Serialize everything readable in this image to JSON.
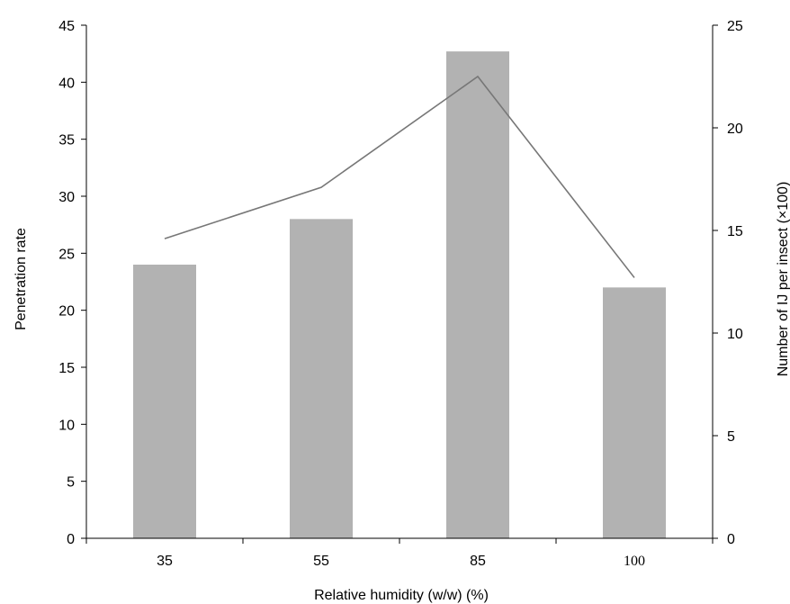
{
  "chart_data": {
    "type": "bar",
    "categories": [
      "35",
      "55",
      "85",
      "100"
    ],
    "series": [
      {
        "type": "bar",
        "axis": "left",
        "values": [
          24,
          28,
          42.7,
          22
        ],
        "color": "#b2b2b2"
      },
      {
        "type": "line",
        "axis": "right",
        "values": [
          14.6,
          17.1,
          22.5,
          12.7
        ],
        "color": "#777777"
      }
    ],
    "xlabel": "Relative humidity (w/w) (%)",
    "ylabel": "Penetration rate",
    "y2label": "Number of IJ per insect (×100)",
    "ylim": [
      0,
      45
    ],
    "y2lim": [
      0,
      25
    ],
    "yticks": [
      0,
      5,
      10,
      15,
      20,
      25,
      30,
      35,
      40,
      45
    ],
    "y2ticks": [
      0,
      5,
      10,
      15,
      20,
      25
    ],
    "grid": false,
    "legend": "none"
  }
}
